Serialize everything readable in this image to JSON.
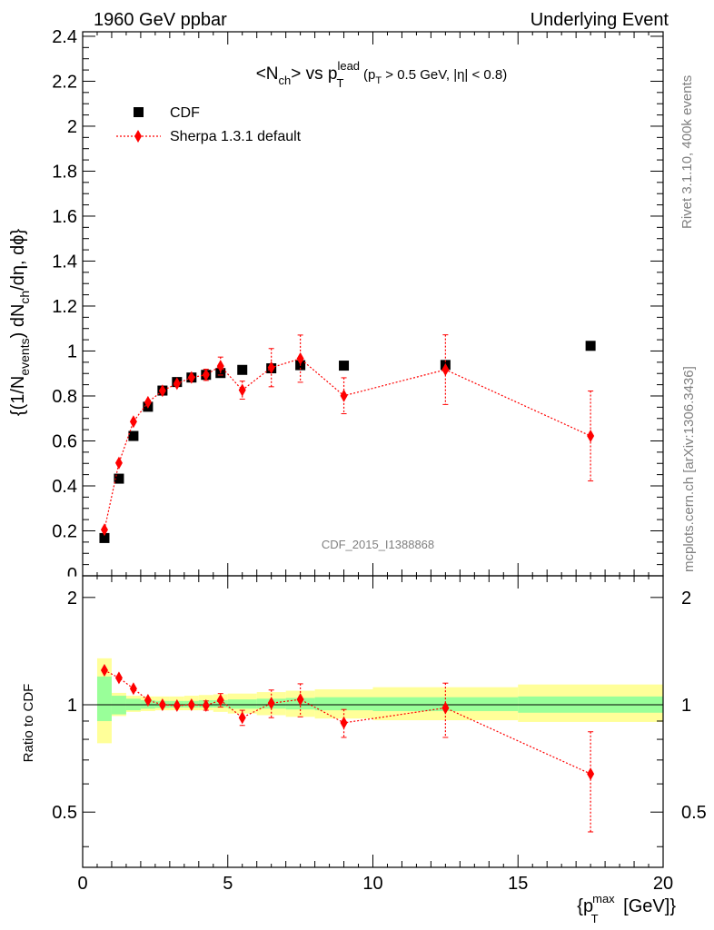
{
  "header": {
    "left": "1960 GeV ppbar",
    "right": "Underlying Event"
  },
  "title": {
    "main": "<N",
    "main_sub": "ch",
    "vs": "> vs p",
    "p_sup": "lead",
    "p_sub": "T",
    "cut_open": "(p",
    "cut_sub": "T",
    "cut_rest": " > 0.5 GeV, |η| < 0.8)"
  },
  "ylabel": {
    "part1": "{(1/N",
    "sub1": "events",
    "part2": ") dN",
    "sub2": "ch",
    "part3": "/dη, dϕ}"
  },
  "ratio_ylabel": "Ratio to CDF",
  "xlabel": {
    "open": "{p",
    "sup": "max",
    "sub": "T",
    "close": " [GeV]}"
  },
  "legend": {
    "data_label": "CDF",
    "mc_label": "Sherpa 1.3.1 default"
  },
  "watermark": "CDF_2015_I1388868",
  "side_text": {
    "rivet": "Rivet 3.1.10,  400k events",
    "mcplots": "mcplots.cern.ch [arXiv:1306.3436]"
  },
  "colors": {
    "mc": "#ff0000",
    "data": "#000000",
    "band_inner": "#99ff99",
    "band_outer": "#ffff99"
  },
  "chart_data": [
    {
      "type": "scatter",
      "panel": "main",
      "xlim": [
        0,
        20
      ],
      "ylim": [
        0,
        2.42
      ],
      "xticks": [
        0,
        5,
        10,
        15,
        20
      ],
      "yticks": [
        0.2,
        0.4,
        0.6,
        0.8,
        1,
        1.2,
        1.4,
        1.6,
        1.8,
        2,
        2.2,
        2.4
      ],
      "ytick_labels": [
        "0.2",
        "0.4",
        "0.6",
        "0.8",
        "1",
        "1.2",
        "1.4",
        "1.6",
        "1.8",
        "2",
        "2.2",
        "2.4"
      ],
      "series": [
        {
          "name": "CDF",
          "marker": "square",
          "x": [
            0.75,
            1.25,
            1.75,
            2.25,
            2.75,
            3.25,
            3.75,
            4.25,
            4.75,
            5.5,
            6.5,
            7.5,
            9.0,
            12.5,
            17.5
          ],
          "y": [
            0.168,
            0.432,
            0.622,
            0.752,
            0.824,
            0.862,
            0.882,
            0.894,
            0.902,
            0.916,
            0.923,
            0.937,
            0.935,
            0.938,
            1.023
          ]
        },
        {
          "name": "Sherpa 1.3.1 default",
          "marker": "diamond",
          "x": [
            0.75,
            1.25,
            1.75,
            2.25,
            2.75,
            3.25,
            3.75,
            4.25,
            4.75,
            5.5,
            6.5,
            7.5,
            9.0,
            12.5,
            17.5
          ],
          "y": [
            0.205,
            0.502,
            0.686,
            0.772,
            0.823,
            0.855,
            0.882,
            0.894,
            0.933,
            0.826,
            0.926,
            0.966,
            0.801,
            0.917,
            0.622
          ],
          "yerr": [
            0.008,
            0.012,
            0.014,
            0.015,
            0.016,
            0.018,
            0.02,
            0.025,
            0.04,
            0.04,
            0.085,
            0.105,
            0.08,
            0.155,
            0.2
          ]
        }
      ]
    },
    {
      "type": "scatter",
      "panel": "ratio",
      "xlim": [
        0,
        20
      ],
      "ylim": [
        0.35,
        2.3
      ],
      "xticks": [
        0,
        5,
        10,
        15,
        20
      ],
      "xtick_labels": [
        "0",
        "5",
        "10",
        "15",
        "20"
      ],
      "yticks": [
        0.5,
        1,
        2
      ],
      "ytick_labels": [
        "0.5",
        "1",
        "2"
      ],
      "bands": {
        "edges": [
          0.5,
          1.0,
          1.5,
          2.0,
          2.5,
          3.0,
          3.5,
          4.0,
          4.5,
          5.0,
          6.0,
          7.0,
          8.0,
          10.0,
          15.0,
          20.0
        ],
        "inner_lo": [
          0.9,
          0.94,
          0.965,
          0.975,
          0.98,
          0.982,
          0.982,
          0.982,
          0.982,
          0.975,
          0.975,
          0.97,
          0.965,
          0.96,
          0.95
        ],
        "inner_hi": [
          1.2,
          1.06,
          1.04,
          1.03,
          1.025,
          1.025,
          1.025,
          1.03,
          1.03,
          1.035,
          1.04,
          1.045,
          1.05,
          1.05,
          1.055
        ],
        "outer_lo": [
          0.78,
          0.93,
          0.955,
          0.96,
          0.965,
          0.965,
          0.965,
          0.965,
          0.955,
          0.945,
          0.935,
          0.925,
          0.915,
          0.905,
          0.895
        ],
        "outer_hi": [
          1.35,
          1.08,
          1.06,
          1.055,
          1.055,
          1.055,
          1.06,
          1.065,
          1.07,
          1.075,
          1.085,
          1.095,
          1.105,
          1.12,
          1.14
        ]
      },
      "series": [
        {
          "name": "Sherpa 1.3.1 default",
          "marker": "diamond",
          "x": [
            0.75,
            1.25,
            1.75,
            2.25,
            2.75,
            3.25,
            3.75,
            4.25,
            4.75,
            5.5,
            6.5,
            7.5,
            9.0,
            12.5,
            17.5
          ],
          "y": [
            1.25,
            1.19,
            1.11,
            1.03,
            1.0,
            0.995,
            1.0,
            0.995,
            1.03,
            0.92,
            1.01,
            1.035,
            0.89,
            0.98,
            0.64
          ],
          "yerr": [
            0.015,
            0.02,
            0.02,
            0.02,
            0.02,
            0.02,
            0.025,
            0.03,
            0.045,
            0.045,
            0.09,
            0.11,
            0.08,
            0.17,
            0.2
          ]
        }
      ]
    }
  ]
}
